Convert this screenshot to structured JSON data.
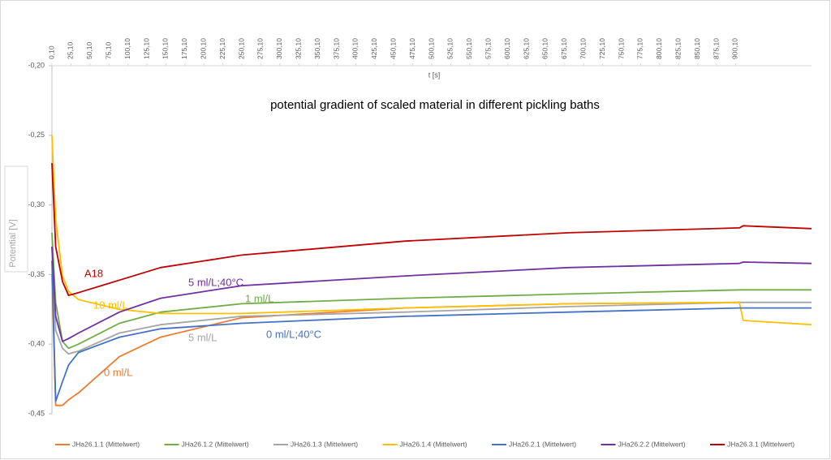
{
  "chart_data": {
    "type": "line",
    "title": "potential gradient of scaled material in different pickling baths",
    "x_label": "t [s]",
    "y_label": "Potential [V]",
    "x": [
      0.1,
      5,
      14,
      22,
      35,
      89,
      143,
      250,
      465,
      680,
      905,
      910,
      1000
    ],
    "xlim": [
      0.1,
      1000
    ],
    "xticks": [
      {
        "value": 0.1,
        "label": "0,10"
      },
      {
        "value": 25.1,
        "label": "25,10"
      },
      {
        "value": 50.1,
        "label": "50,10"
      },
      {
        "value": 75.1,
        "label": "75,10"
      },
      {
        "value": 100.1,
        "label": "100,10"
      },
      {
        "value": 125.1,
        "label": "125,10"
      },
      {
        "value": 150.1,
        "label": "150,10"
      },
      {
        "value": 175.1,
        "label": "175,10"
      },
      {
        "value": 200.1,
        "label": "200,10"
      },
      {
        "value": 225.1,
        "label": "225,10"
      },
      {
        "value": 250.1,
        "label": "250,10"
      },
      {
        "value": 275.1,
        "label": "275,10"
      },
      {
        "value": 300.1,
        "label": "300,10"
      },
      {
        "value": 325.1,
        "label": "325,10"
      },
      {
        "value": 350.1,
        "label": "350,10"
      },
      {
        "value": 375.1,
        "label": "375,10"
      },
      {
        "value": 400.1,
        "label": "400,10"
      },
      {
        "value": 425.1,
        "label": "425,10"
      },
      {
        "value": 450.1,
        "label": "450,10"
      },
      {
        "value": 475.1,
        "label": "475,10"
      },
      {
        "value": 500.1,
        "label": "500,10"
      },
      {
        "value": 525.1,
        "label": "525,10"
      },
      {
        "value": 550.1,
        "label": "550,10"
      },
      {
        "value": 575.1,
        "label": "575,10"
      },
      {
        "value": 600.1,
        "label": "600,10"
      },
      {
        "value": 625.1,
        "label": "625,10"
      },
      {
        "value": 650.1,
        "label": "650,10"
      },
      {
        "value": 675.1,
        "label": "675,10"
      },
      {
        "value": 700.1,
        "label": "700,10"
      },
      {
        "value": 725.1,
        "label": "725,10"
      },
      {
        "value": 750.1,
        "label": "750,10"
      },
      {
        "value": 775.1,
        "label": "775,10"
      },
      {
        "value": 800.1,
        "label": "800,10"
      },
      {
        "value": 825.1,
        "label": "825,10"
      },
      {
        "value": 850.1,
        "label": "850,10"
      },
      {
        "value": 875.1,
        "label": "875,10"
      },
      {
        "value": 900.1,
        "label": "900,10"
      }
    ],
    "ylim": [
      -0.45,
      -0.2
    ],
    "yticks": [
      {
        "value": -0.2,
        "label": "-0,20"
      },
      {
        "value": -0.25,
        "label": "-0,25"
      },
      {
        "value": -0.3,
        "label": "-0,30"
      },
      {
        "value": -0.35,
        "label": "-0,35"
      },
      {
        "value": -0.4,
        "label": "-0,40"
      },
      {
        "value": -0.45,
        "label": "-0,45"
      }
    ],
    "legend": "bottom",
    "series": [
      {
        "name": "JHa26.1.1 (Mittelwert)",
        "label": "0 ml/L",
        "color": "#ed7d31",
        "values": [
          -0.35,
          -0.444,
          -0.444,
          -0.44,
          -0.435,
          -0.409,
          -0.395,
          -0.381,
          -0.374,
          -0.371,
          -0.37,
          null,
          null
        ]
      },
      {
        "name": "JHa26.1.2 (Mittelwert)",
        "label": "1 ml/L",
        "color": "#70ad47",
        "values": [
          -0.32,
          -0.37,
          -0.398,
          -0.403,
          -0.4,
          -0.385,
          -0.377,
          -0.371,
          -0.367,
          -0.364,
          -0.361,
          -0.361,
          -0.361
        ]
      },
      {
        "name": "JHa26.1.3 (Mittelwert)",
        "label": "5 ml/L",
        "color": "#a5a5a5",
        "values": [
          -0.33,
          -0.39,
          -0.403,
          -0.407,
          -0.405,
          -0.392,
          -0.386,
          -0.38,
          -0.377,
          -0.373,
          -0.37,
          -0.37,
          -0.37
        ]
      },
      {
        "name": "JHa26.1.4 (Mittelwert)",
        "label": "10 ml/L",
        "color": "#ffc000",
        "values": [
          -0.25,
          -0.31,
          -0.351,
          -0.362,
          -0.368,
          -0.375,
          -0.378,
          -0.378,
          -0.374,
          -0.371,
          -0.37,
          -0.383,
          -0.386
        ]
      },
      {
        "name": "JHa26.2.1 (Mittelwert)",
        "label": "0 ml/L;40°C",
        "color": "#4472c4",
        "values": [
          -0.34,
          -0.441,
          -0.427,
          -0.415,
          -0.406,
          -0.395,
          -0.389,
          -0.385,
          -0.38,
          -0.377,
          -0.374,
          -0.374,
          -0.374
        ]
      },
      {
        "name": "JHa26.2.2 (Mittelwert)",
        "label": "5 ml/L;40°C",
        "color": "#7030a0",
        "values": [
          -0.33,
          -0.38,
          -0.398,
          -0.396,
          -0.392,
          -0.377,
          -0.367,
          -0.358,
          -0.351,
          -0.345,
          -0.342,
          -0.341,
          -0.342
        ]
      },
      {
        "name": "JHa26.3.1 (Mittelwert)",
        "label": "A18",
        "color": "#c00000",
        "values": [
          -0.27,
          -0.33,
          -0.355,
          -0.365,
          -0.363,
          -0.354,
          -0.345,
          -0.336,
          -0.326,
          -0.32,
          -0.3165,
          -0.315,
          -0.317
        ]
      }
    ]
  }
}
